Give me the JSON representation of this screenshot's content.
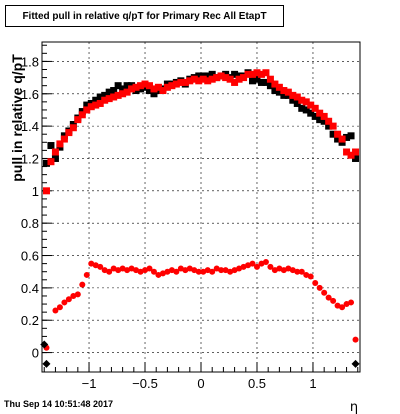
{
  "chart_data": {
    "type": "scatter",
    "title": "Fitted pull in relative q/pT for Primary Rec All EtapT",
    "xlabel": "η",
    "ylabel": "pull in relative q/pT",
    "xlim": [
      -1.42,
      1.42
    ],
    "ylim": [
      -0.12,
      1.92
    ],
    "xticks": [
      -1,
      -0.5,
      0,
      0.5,
      1
    ],
    "yticks": [
      0,
      0.2,
      0.4,
      0.6,
      0.8,
      1,
      1.2,
      1.4,
      1.6,
      1.8
    ],
    "grid": true,
    "series": [
      {
        "color": "#000000",
        "marker": "square",
        "points": [
          [
            -1.38,
            1.17
          ],
          [
            -1.34,
            1.28
          ],
          [
            -1.3,
            1.2
          ],
          [
            -1.26,
            1.27
          ],
          [
            -1.22,
            1.34
          ],
          [
            -1.18,
            1.37
          ],
          [
            -1.14,
            1.41
          ],
          [
            -1.1,
            1.45
          ],
          [
            -1.06,
            1.49
          ],
          [
            -1.02,
            1.53
          ],
          [
            -0.98,
            1.54
          ],
          [
            -0.94,
            1.56
          ],
          [
            -0.9,
            1.58
          ],
          [
            -0.86,
            1.59
          ],
          [
            -0.82,
            1.61
          ],
          [
            -0.78,
            1.62
          ],
          [
            -0.74,
            1.65
          ],
          [
            -0.7,
            1.63
          ],
          [
            -0.66,
            1.65
          ],
          [
            -0.62,
            1.65
          ],
          [
            -0.58,
            1.62
          ],
          [
            -0.54,
            1.63
          ],
          [
            -0.5,
            1.64
          ],
          [
            -0.46,
            1.62
          ],
          [
            -0.42,
            1.6
          ],
          [
            -0.38,
            1.62
          ],
          [
            -0.34,
            1.63
          ],
          [
            -0.3,
            1.66
          ],
          [
            -0.26,
            1.66
          ],
          [
            -0.22,
            1.67
          ],
          [
            -0.18,
            1.68
          ],
          [
            -0.14,
            1.66
          ],
          [
            -0.1,
            1.69
          ],
          [
            -0.06,
            1.7
          ],
          [
            -0.02,
            1.71
          ],
          [
            0.02,
            1.71
          ],
          [
            0.06,
            1.71
          ],
          [
            0.1,
            1.72
          ],
          [
            0.14,
            1.7
          ],
          [
            0.18,
            1.71
          ],
          [
            0.22,
            1.72
          ],
          [
            0.26,
            1.7
          ],
          [
            0.3,
            1.72
          ],
          [
            0.34,
            1.71
          ],
          [
            0.38,
            1.71
          ],
          [
            0.42,
            1.73
          ],
          [
            0.46,
            1.68
          ],
          [
            0.5,
            1.69
          ],
          [
            0.54,
            1.67
          ],
          [
            0.58,
            1.67
          ],
          [
            0.62,
            1.65
          ],
          [
            0.66,
            1.62
          ],
          [
            0.7,
            1.61
          ],
          [
            0.74,
            1.59
          ],
          [
            0.78,
            1.59
          ],
          [
            0.82,
            1.56
          ],
          [
            0.86,
            1.54
          ],
          [
            0.9,
            1.51
          ],
          [
            0.94,
            1.5
          ],
          [
            0.98,
            1.48
          ],
          [
            1.02,
            1.46
          ],
          [
            1.06,
            1.44
          ],
          [
            1.1,
            1.43
          ],
          [
            1.14,
            1.4
          ],
          [
            1.18,
            1.35
          ],
          [
            1.22,
            1.32
          ],
          [
            1.26,
            1.3
          ],
          [
            1.3,
            1.33
          ],
          [
            1.34,
            1.34
          ],
          [
            1.38,
            1.2
          ]
        ]
      },
      {
        "color": "#ff0000",
        "marker": "square",
        "points": [
          [
            -1.38,
            1.0
          ],
          [
            -1.34,
            1.18
          ],
          [
            -1.3,
            1.24
          ],
          [
            -1.26,
            1.29
          ],
          [
            -1.22,
            1.32
          ],
          [
            -1.18,
            1.36
          ],
          [
            -1.14,
            1.39
          ],
          [
            -1.1,
            1.44
          ],
          [
            -1.06,
            1.47
          ],
          [
            -1.02,
            1.5
          ],
          [
            -0.98,
            1.52
          ],
          [
            -0.94,
            1.53
          ],
          [
            -0.9,
            1.54
          ],
          [
            -0.86,
            1.56
          ],
          [
            -0.82,
            1.57
          ],
          [
            -0.78,
            1.58
          ],
          [
            -0.74,
            1.59
          ],
          [
            -0.7,
            1.6
          ],
          [
            -0.66,
            1.61
          ],
          [
            -0.62,
            1.63
          ],
          [
            -0.58,
            1.64
          ],
          [
            -0.54,
            1.65
          ],
          [
            -0.5,
            1.66
          ],
          [
            -0.46,
            1.65
          ],
          [
            -0.42,
            1.63
          ],
          [
            -0.38,
            1.64
          ],
          [
            -0.34,
            1.62
          ],
          [
            -0.3,
            1.64
          ],
          [
            -0.26,
            1.65
          ],
          [
            -0.22,
            1.66
          ],
          [
            -0.18,
            1.67
          ],
          [
            -0.14,
            1.67
          ],
          [
            -0.1,
            1.68
          ],
          [
            -0.06,
            1.69
          ],
          [
            -0.02,
            1.68
          ],
          [
            0.02,
            1.69
          ],
          [
            0.06,
            1.68
          ],
          [
            0.1,
            1.69
          ],
          [
            0.14,
            1.7
          ],
          [
            0.18,
            1.71
          ],
          [
            0.22,
            1.7
          ],
          [
            0.26,
            1.69
          ],
          [
            0.3,
            1.67
          ],
          [
            0.34,
            1.69
          ],
          [
            0.38,
            1.7
          ],
          [
            0.42,
            1.72
          ],
          [
            0.46,
            1.72
          ],
          [
            0.5,
            1.73
          ],
          [
            0.54,
            1.72
          ],
          [
            0.58,
            1.73
          ],
          [
            0.62,
            1.69
          ],
          [
            0.66,
            1.66
          ],
          [
            0.7,
            1.64
          ],
          [
            0.74,
            1.62
          ],
          [
            0.78,
            1.61
          ],
          [
            0.82,
            1.59
          ],
          [
            0.86,
            1.58
          ],
          [
            0.9,
            1.56
          ],
          [
            0.94,
            1.55
          ],
          [
            0.98,
            1.53
          ],
          [
            1.02,
            1.51
          ],
          [
            1.06,
            1.48
          ],
          [
            1.1,
            1.46
          ],
          [
            1.14,
            1.43
          ],
          [
            1.18,
            1.4
          ],
          [
            1.22,
            1.35
          ],
          [
            1.26,
            1.32
          ],
          [
            1.3,
            1.24
          ],
          [
            1.34,
            1.22
          ],
          [
            1.38,
            1.24
          ]
        ]
      },
      {
        "color": "#ff0000",
        "marker": "circle",
        "points": [
          [
            -1.38,
            0.03
          ],
          [
            -1.3,
            0.26
          ],
          [
            -1.26,
            0.28
          ],
          [
            -1.22,
            0.31
          ],
          [
            -1.18,
            0.33
          ],
          [
            -1.14,
            0.35
          ],
          [
            -1.1,
            0.36
          ],
          [
            -1.06,
            0.42
          ],
          [
            -1.02,
            0.48
          ],
          [
            -0.98,
            0.55
          ],
          [
            -0.94,
            0.54
          ],
          [
            -0.9,
            0.53
          ],
          [
            -0.86,
            0.51
          ],
          [
            -0.82,
            0.5
          ],
          [
            -0.78,
            0.52
          ],
          [
            -0.74,
            0.51
          ],
          [
            -0.7,
            0.52
          ],
          [
            -0.66,
            0.51
          ],
          [
            -0.62,
            0.52
          ],
          [
            -0.58,
            0.51
          ],
          [
            -0.54,
            0.5
          ],
          [
            -0.5,
            0.51
          ],
          [
            -0.46,
            0.52
          ],
          [
            -0.42,
            0.5
          ],
          [
            -0.38,
            0.48
          ],
          [
            -0.34,
            0.49
          ],
          [
            -0.3,
            0.5
          ],
          [
            -0.26,
            0.51
          ],
          [
            -0.22,
            0.5
          ],
          [
            -0.18,
            0.52
          ],
          [
            -0.14,
            0.51
          ],
          [
            -0.1,
            0.52
          ],
          [
            -0.06,
            0.51
          ],
          [
            -0.02,
            0.5
          ],
          [
            0.02,
            0.5
          ],
          [
            0.06,
            0.51
          ],
          [
            0.1,
            0.5
          ],
          [
            0.14,
            0.52
          ],
          [
            0.18,
            0.51
          ],
          [
            0.22,
            0.51
          ],
          [
            0.26,
            0.5
          ],
          [
            0.3,
            0.51
          ],
          [
            0.34,
            0.52
          ],
          [
            0.38,
            0.53
          ],
          [
            0.42,
            0.54
          ],
          [
            0.46,
            0.55
          ],
          [
            0.5,
            0.53
          ],
          [
            0.54,
            0.55
          ],
          [
            0.58,
            0.56
          ],
          [
            0.62,
            0.53
          ],
          [
            0.66,
            0.51
          ],
          [
            0.7,
            0.52
          ],
          [
            0.74,
            0.51
          ],
          [
            0.78,
            0.52
          ],
          [
            0.82,
            0.51
          ],
          [
            0.86,
            0.5
          ],
          [
            0.9,
            0.5
          ],
          [
            0.94,
            0.48
          ],
          [
            0.98,
            0.47
          ],
          [
            1.02,
            0.43
          ],
          [
            1.06,
            0.4
          ],
          [
            1.1,
            0.37
          ],
          [
            1.14,
            0.34
          ],
          [
            1.18,
            0.32
          ],
          [
            1.22,
            0.29
          ],
          [
            1.26,
            0.28
          ],
          [
            1.3,
            0.3
          ],
          [
            1.34,
            0.31
          ],
          [
            1.38,
            0.08
          ]
        ]
      },
      {
        "color": "#000000",
        "marker": "diamond",
        "points": [
          [
            -1.4,
            0.05
          ],
          [
            -1.38,
            -0.07
          ],
          [
            1.38,
            -0.07
          ]
        ]
      }
    ],
    "footer": "Thu Sep 14 10:51:48 2017"
  }
}
